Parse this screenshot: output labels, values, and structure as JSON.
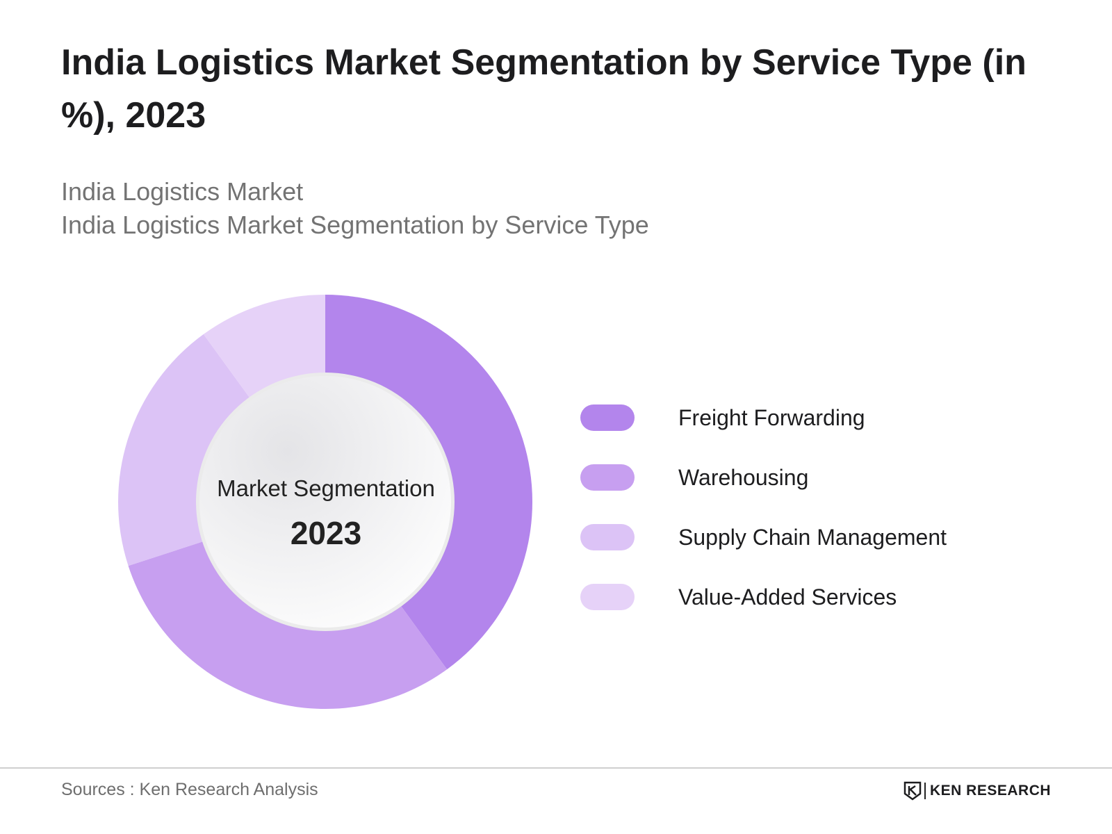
{
  "header": {
    "title": "India Logistics Market Segmentation by Service Type  (in %), 2023",
    "subtitle_line1": "India Logistics Market",
    "subtitle_line2": "India Logistics Market Segmentation by Service Type"
  },
  "center": {
    "label": "Market Segmentation",
    "year": "2023"
  },
  "footer": {
    "source": "Sources : Ken Research Analysis",
    "brand": "KEN RESEARCH"
  },
  "colors": {
    "freight_forwarding": "#b385ec",
    "warehousing": "#c79ff0",
    "supply_chain_management": "#dcc3f6",
    "value_added_services": "#e6d2f8"
  },
  "chart_data": {
    "type": "pie",
    "variant": "donut",
    "title": "India Logistics Market Segmentation by Service Type  (in %), 2023",
    "categories": [
      "Freight Forwarding",
      "Warehousing",
      "Supply Chain Management",
      "Value-Added Services"
    ],
    "values": [
      40,
      30,
      20,
      10
    ],
    "colors": [
      "#b385ec",
      "#c79ff0",
      "#dcc3f6",
      "#e6d2f8"
    ],
    "legend_position": "right"
  }
}
